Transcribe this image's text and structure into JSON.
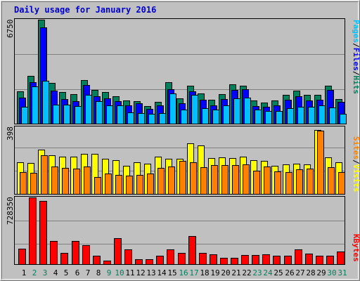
{
  "title": "Daily usage for January 2016",
  "colors": {
    "background": "#c0c0c0",
    "title": "#0000cc",
    "hits": "#00805c",
    "files": "#0000ff",
    "pages": "#00c0ff",
    "visits": "#ffff00",
    "sites": "#ff8000",
    "kbytes": "#ff0000",
    "weekday_label": "#000000",
    "weekend_label": "#00805c"
  },
  "side_labels": {
    "top": [
      {
        "text": "Pages",
        "color": "#00c0ff"
      },
      {
        "text": "/",
        "color": "#000000"
      },
      {
        "text": "Files",
        "color": "#0000ff"
      },
      {
        "text": "/",
        "color": "#000000"
      },
      {
        "text": "Hits",
        "color": "#00805c"
      }
    ],
    "middle": [
      {
        "text": "Sites",
        "color": "#ff8000"
      },
      {
        "text": "/",
        "color": "#000000"
      },
      {
        "text": "Visits",
        "color": "#ffff00"
      }
    ],
    "bottom": [
      {
        "text": "KBytes",
        "color": "#ff0000"
      }
    ]
  },
  "chart_data": [
    {
      "type": "bar",
      "panel": "hits-files-pages",
      "ymax_label": "6750",
      "ylim": [
        0,
        6750
      ],
      "categories": [
        "1",
        "2",
        "3",
        "4",
        "5",
        "6",
        "7",
        "8",
        "9",
        "10",
        "11",
        "12",
        "13",
        "14",
        "15",
        "16",
        "17",
        "18",
        "19",
        "20",
        "21",
        "22",
        "23",
        "24",
        "25",
        "26",
        "27",
        "28",
        "29",
        "30",
        "31"
      ],
      "weekend_days": [
        "2",
        "3",
        "9",
        "10",
        "16",
        "17",
        "23",
        "24",
        "30",
        "31"
      ],
      "series": [
        {
          "name": "Hits",
          "color": "#00805c",
          "values": [
            2100,
            3100,
            6750,
            2650,
            2050,
            1900,
            2850,
            2200,
            2050,
            1800,
            1500,
            1450,
            1150,
            1400,
            2700,
            1650,
            2450,
            1950,
            1550,
            1900,
            2550,
            2450,
            1500,
            1350,
            1500,
            1850,
            2150,
            1850,
            1850,
            2450,
            1600
          ]
        },
        {
          "name": "Files",
          "color": "#0000ff",
          "values": [
            1700,
            2700,
            6250,
            2150,
            1600,
            1450,
            2500,
            1800,
            1650,
            1450,
            1200,
            1300,
            950,
            1200,
            2250,
            1300,
            2100,
            1550,
            1200,
            1600,
            2200,
            2250,
            1150,
            1100,
            1200,
            1550,
            1800,
            1500,
            1550,
            2200,
            1400
          ]
        },
        {
          "name": "Pages",
          "color": "#00c0ff",
          "values": [
            1100,
            2400,
            2800,
            1250,
            1250,
            1150,
            1850,
            1450,
            1200,
            1200,
            750,
            700,
            650,
            700,
            1950,
            900,
            1850,
            1000,
            900,
            1200,
            1650,
            1700,
            900,
            800,
            800,
            1000,
            1100,
            1100,
            1200,
            1050,
            650
          ]
        }
      ]
    },
    {
      "type": "bar",
      "panel": "visits-sites",
      "ymax_label": "398",
      "ylim": [
        0,
        398
      ],
      "categories": [
        "1",
        "2",
        "3",
        "4",
        "5",
        "6",
        "7",
        "8",
        "9",
        "10",
        "11",
        "12",
        "13",
        "14",
        "15",
        "16",
        "17",
        "18",
        "19",
        "20",
        "21",
        "22",
        "23",
        "24",
        "25",
        "26",
        "27",
        "28",
        "29",
        "30",
        "31"
      ],
      "series": [
        {
          "name": "Visits",
          "color": "#ffff00",
          "values": [
            190,
            185,
            265,
            230,
            222,
            220,
            238,
            240,
            210,
            200,
            168,
            188,
            180,
            220,
            208,
            210,
            300,
            290,
            212,
            218,
            212,
            220,
            200,
            198,
            168,
            178,
            182,
            178,
            380,
            218,
            190
          ]
        },
        {
          "name": "Sites",
          "color": "#ff8000",
          "values": [
            130,
            125,
            232,
            165,
            155,
            150,
            165,
            100,
            120,
            115,
            110,
            112,
            120,
            155,
            162,
            198,
            188,
            160,
            170,
            172,
            170,
            176,
            138,
            165,
            135,
            130,
            145,
            152,
            375,
            160,
            128
          ]
        }
      ]
    },
    {
      "type": "bar",
      "panel": "kbytes",
      "ymax_label": "728350",
      "ylim": [
        0,
        728350
      ],
      "categories": [
        "1",
        "2",
        "3",
        "4",
        "5",
        "6",
        "7",
        "8",
        "9",
        "10",
        "11",
        "12",
        "13",
        "14",
        "15",
        "16",
        "17",
        "18",
        "19",
        "20",
        "21",
        "22",
        "23",
        "24",
        "25",
        "26",
        "27",
        "28",
        "29",
        "30",
        "31"
      ],
      "series": [
        {
          "name": "KBytes",
          "color": "#ff0000",
          "values": [
            165000,
            728350,
            690000,
            250000,
            125000,
            250000,
            210000,
            90000,
            40000,
            280000,
            160000,
            55000,
            55000,
            95000,
            160000,
            125000,
            305000,
            125000,
            105000,
            70000,
            70000,
            100000,
            100000,
            110000,
            95000,
            95000,
            160000,
            115000,
            95000,
            95000,
            140000
          ]
        }
      ]
    }
  ]
}
